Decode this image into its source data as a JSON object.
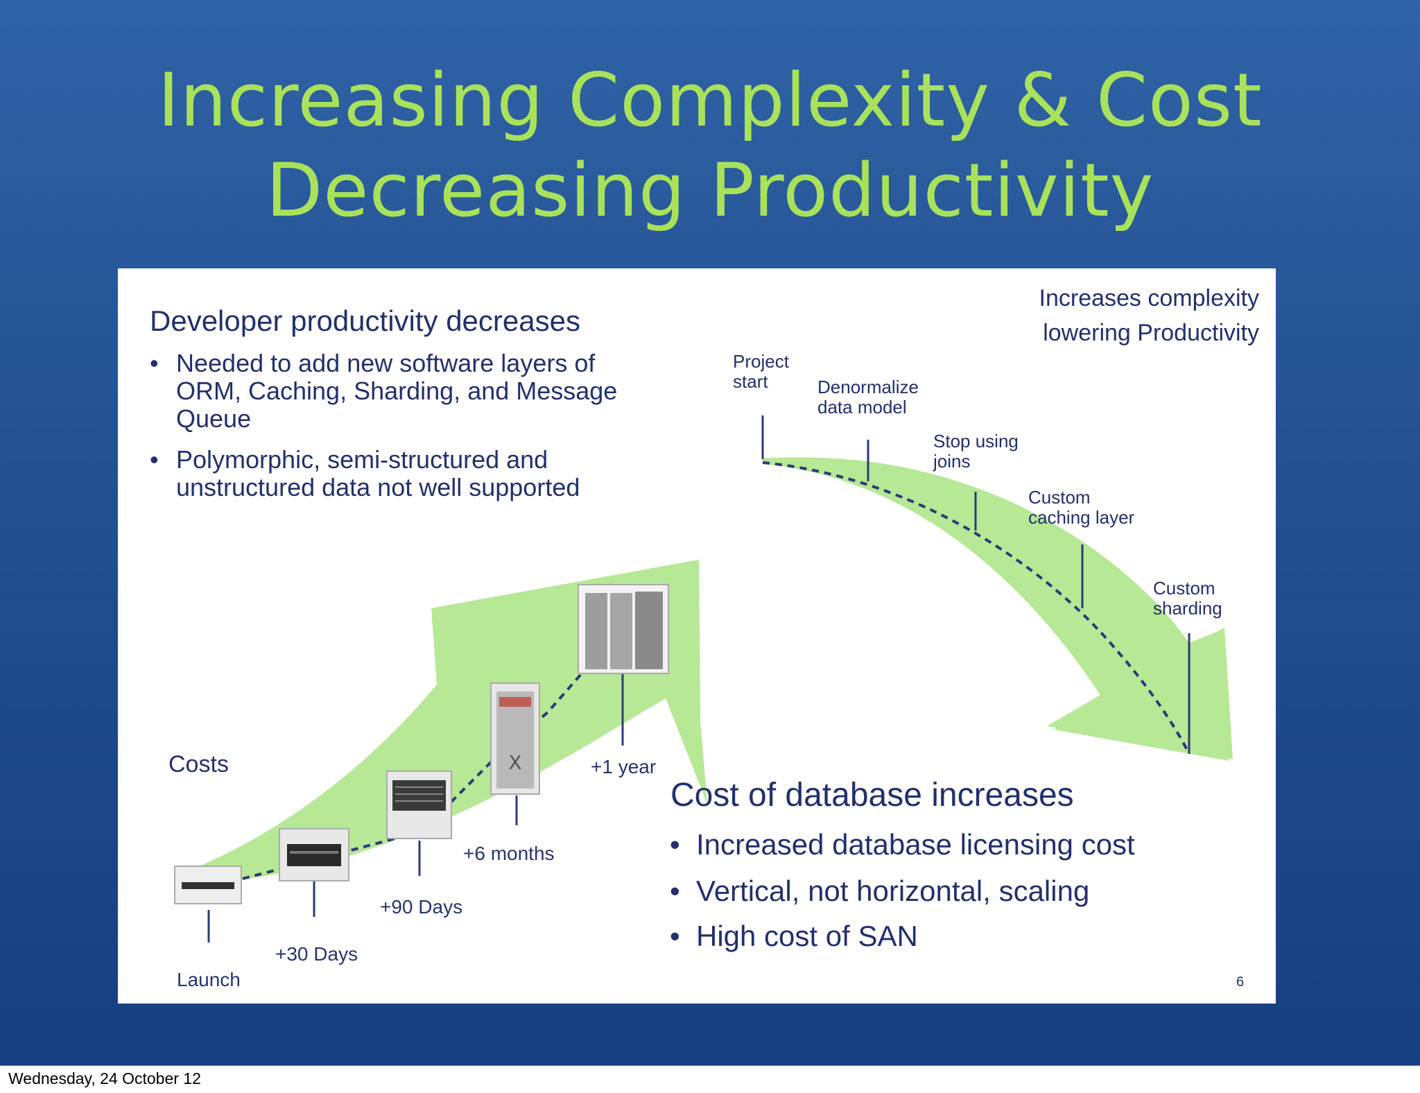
{
  "slide": {
    "title_line1": "Increasing Complexity & Cost",
    "title_line2": "Decreasing Productivity",
    "footer_date": "Wednesday, 24 October 12",
    "page_number": "6",
    "colors": {
      "title": "#a9e25a",
      "background_top": "#2f62a6",
      "background_bottom": "#173f80",
      "text_navy": "#22306b",
      "arrow_green": "#b6e895"
    }
  },
  "developer_section": {
    "heading": "Developer productivity decreases",
    "bullets": [
      [
        "Needed to add new software layers of",
        "ORM, Caching, Sharding, and Message",
        "Queue"
      ],
      [
        "Polymorphic, semi-structured and",
        "unstructured data not well supported"
      ]
    ]
  },
  "complexity_curve": {
    "caption_line1": "Increases complexity",
    "caption_line2": "lowering Productivity",
    "milestones": [
      [
        "Project",
        "start"
      ],
      [
        "Denormalize",
        "data model"
      ],
      [
        "Stop using",
        "joins"
      ],
      [
        "Custom",
        "caching layer"
      ],
      [
        "Custom",
        "sharding"
      ]
    ]
  },
  "cost_curve": {
    "label": "Costs",
    "milestones": [
      "Launch",
      "+30 Days",
      "+90 Days",
      "+6 months",
      "+1 year"
    ],
    "server_icons": [
      "small-server-icon",
      "rack-server-icon",
      "storage-array-icon",
      "server-cabinet-icon",
      "datacenter-racks-icon"
    ]
  },
  "database_section": {
    "heading": "Cost of database increases",
    "bullets": [
      "Increased database licensing cost",
      "Vertical, not horizontal, scaling",
      "High cost of SAN"
    ]
  }
}
